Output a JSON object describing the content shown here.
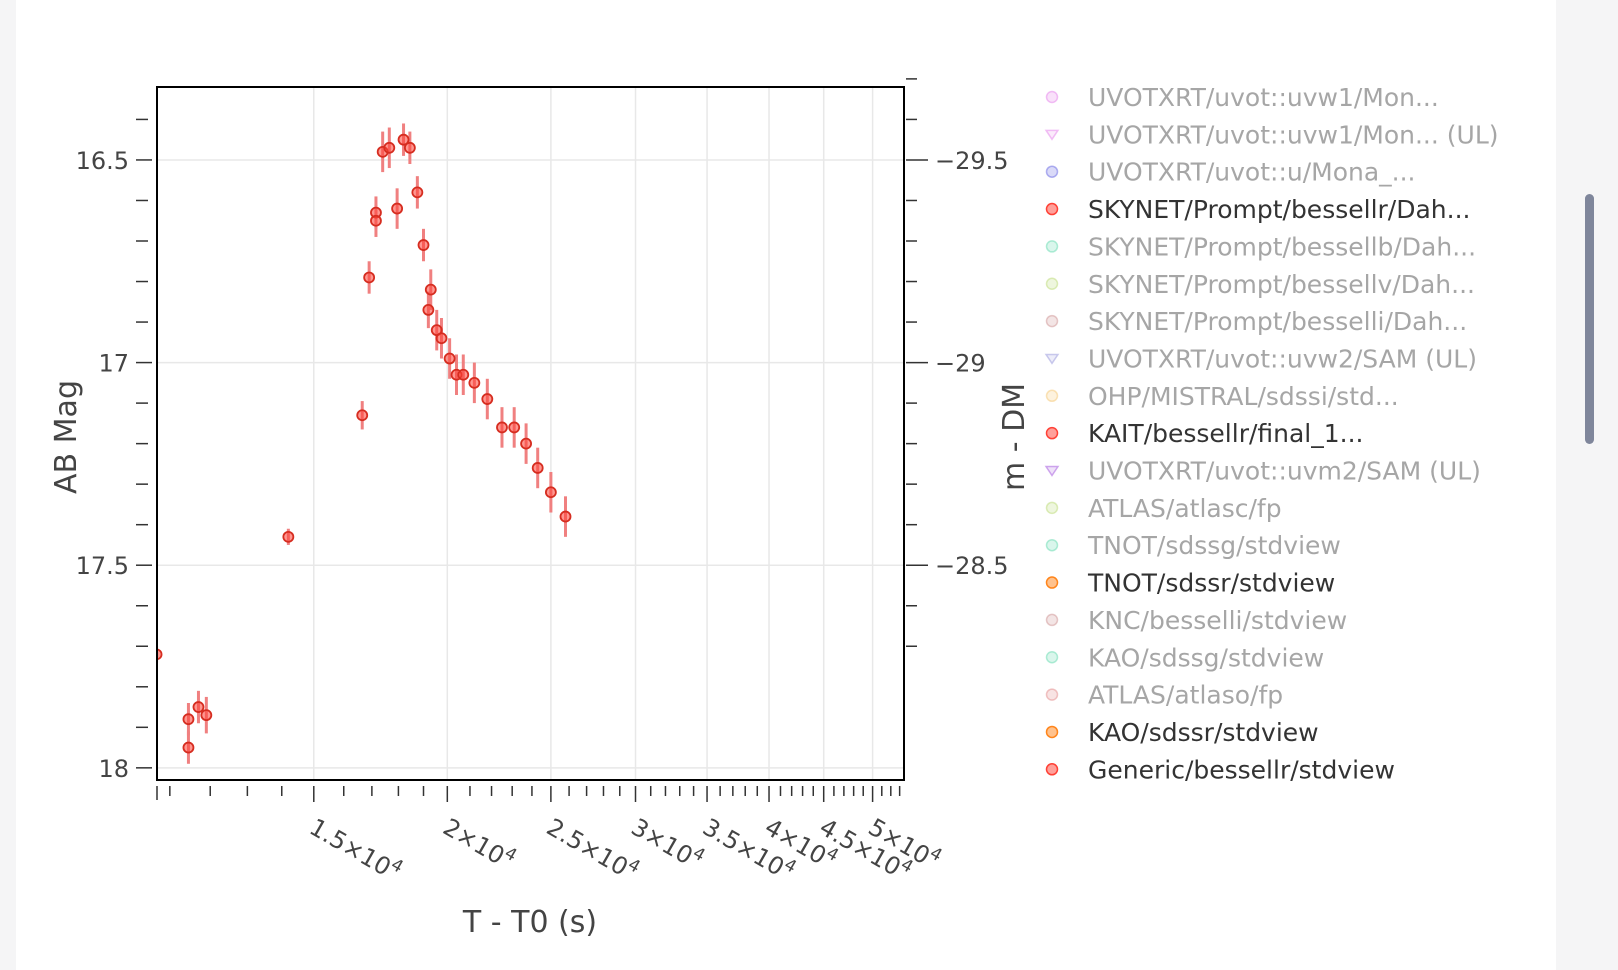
{
  "chart_data": {
    "type": "scatter",
    "title": "",
    "xlabel": "T - T0 (s)",
    "ylabel": "AB Mag",
    "y2label": "m - DM",
    "x_scale": "log",
    "xlim": [
      10700,
      53500
    ],
    "ylim": [
      18.03,
      16.32
    ],
    "y_reversed": true,
    "y2_offset": -46.0,
    "grid": true,
    "x_ticks": [
      {
        "value": 15000,
        "mant": "1.5×10",
        "exp": "4"
      },
      {
        "value": 20000,
        "mant": "2×10",
        "exp": "4"
      },
      {
        "value": 25000,
        "mant": "2.5×10",
        "exp": "4"
      },
      {
        "value": 30000,
        "mant": "3×10",
        "exp": "4"
      },
      {
        "value": 35000,
        "mant": "3.5×10",
        "exp": "4"
      },
      {
        "value": 40000,
        "mant": "4×10",
        "exp": "4"
      },
      {
        "value": 45000,
        "mant": "4.5×10",
        "exp": "4"
      },
      {
        "value": 50000,
        "mant": "5×10",
        "exp": "4"
      }
    ],
    "x_minor_ticks": [
      11000,
      12000,
      13000,
      14000,
      16000,
      17000,
      18000,
      19000,
      21000,
      22000,
      23000,
      24000,
      26000,
      27000,
      28000,
      29000,
      31000,
      32000,
      33000,
      34000,
      36000,
      37000,
      38000,
      39000,
      41000,
      42000,
      43000,
      44000,
      46000,
      47000,
      48000,
      49000,
      51000,
      52000,
      53000
    ],
    "y_ticks": [
      {
        "value": 16.5,
        "label": "16.5"
      },
      {
        "value": 17,
        "label": "17"
      },
      {
        "value": 17.5,
        "label": "17.5"
      },
      {
        "value": 18,
        "label": "18"
      }
    ],
    "y_minor_ticks": [
      16.4,
      16.6,
      16.7,
      16.8,
      16.9,
      17.1,
      17.2,
      17.3,
      17.4,
      17.6,
      17.7,
      17.8,
      17.9
    ],
    "y2_ticks": [
      {
        "value": -29.5,
        "label": "−29.5"
      },
      {
        "value": -29,
        "label": "−29"
      },
      {
        "value": -28.5,
        "label": "−28.5"
      }
    ],
    "y2_minor_ticks": [
      -29.7,
      -29.6,
      -29.4,
      -29.3,
      -29.2,
      -29.1,
      -28.9,
      -28.8,
      -28.7,
      -28.6,
      -28.4,
      -28.3
    ],
    "marker_color": "#ff4136",
    "errorbar_color": "#f08080",
    "series": [
      {
        "name": "SKYNET/Prompt/bessellr/Dah...",
        "points": [
          {
            "x": 10690,
            "y": 17.72,
            "err": 0.02
          },
          {
            "x": 11450,
            "y": 17.88,
            "err": 0.04
          },
          {
            "x": 11700,
            "y": 17.85,
            "err": 0.04
          },
          {
            "x": 11450,
            "y": 17.95,
            "err": 0.04
          },
          {
            "x": 11900,
            "y": 17.87,
            "err": 0.045
          },
          {
            "x": 14200,
            "y": 17.43,
            "err": 0.02
          },
          {
            "x": 16650,
            "y": 17.13,
            "err": 0.035
          },
          {
            "x": 16900,
            "y": 16.79,
            "err": 0.04
          },
          {
            "x": 17150,
            "y": 16.63,
            "err": 0.04
          },
          {
            "x": 17150,
            "y": 16.65,
            "err": 0.04
          },
          {
            "x": 17400,
            "y": 16.48,
            "err": 0.05
          },
          {
            "x": 17650,
            "y": 16.47,
            "err": 0.05
          },
          {
            "x": 17950,
            "y": 16.62,
            "err": 0.05
          },
          {
            "x": 18200,
            "y": 16.45,
            "err": 0.04
          },
          {
            "x": 18450,
            "y": 16.47,
            "err": 0.04
          },
          {
            "x": 18750,
            "y": 16.58,
            "err": 0.04
          },
          {
            "x": 19000,
            "y": 16.71,
            "err": 0.04
          },
          {
            "x": 19200,
            "y": 16.87,
            "err": 0.045
          },
          {
            "x": 19300,
            "y": 16.82,
            "err": 0.05
          },
          {
            "x": 19550,
            "y": 16.92,
            "err": 0.05
          },
          {
            "x": 19750,
            "y": 16.94,
            "err": 0.05
          },
          {
            "x": 20100,
            "y": 16.99,
            "err": 0.05
          },
          {
            "x": 20400,
            "y": 17.03,
            "err": 0.05
          },
          {
            "x": 20700,
            "y": 17.03,
            "err": 0.05
          },
          {
            "x": 21200,
            "y": 17.05,
            "err": 0.05
          },
          {
            "x": 21800,
            "y": 17.09,
            "err": 0.05
          },
          {
            "x": 22500,
            "y": 17.16,
            "err": 0.05
          },
          {
            "x": 23100,
            "y": 17.16,
            "err": 0.05
          },
          {
            "x": 23700,
            "y": 17.2,
            "err": 0.05
          },
          {
            "x": 24300,
            "y": 17.26,
            "err": 0.05
          },
          {
            "x": 25000,
            "y": 17.32,
            "err": 0.05
          },
          {
            "x": 25800,
            "y": 17.38,
            "err": 0.05
          }
        ]
      }
    ],
    "legend_position": "right",
    "legend": [
      {
        "label": "UVOTXRT/uvot::uvw1/Mon...",
        "color": "#e377e8",
        "symbol": "circle",
        "active": false
      },
      {
        "label": "UVOTXRT/uvot::uvw1/Mon... (UL)",
        "color": "#e377e8",
        "symbol": "triangle-down",
        "active": false
      },
      {
        "label": "UVOTXRT/uvot::u/Mona_...",
        "color": "#5b5be0",
        "symbol": "circle",
        "active": false
      },
      {
        "label": "SKYNET/Prompt/bessellr/Dah...",
        "color": "#ff4136",
        "symbol": "circle",
        "active": true
      },
      {
        "label": "SKYNET/Prompt/bessellb/Dah...",
        "color": "#59d6a8",
        "symbol": "circle",
        "active": false
      },
      {
        "label": "SKYNET/Prompt/bessellv/Dah...",
        "color": "#b5d66a",
        "symbol": "circle",
        "active": false
      },
      {
        "label": "SKYNET/Prompt/besselli/Dah...",
        "color": "#c98a8a",
        "symbol": "circle",
        "active": false
      },
      {
        "label": "UVOTXRT/uvot::uvw2/SAM (UL)",
        "color": "#8e8ed8",
        "symbol": "triangle-down",
        "active": false
      },
      {
        "label": "OHP/MISTRAL/sdssi/std...",
        "color": "#f5c46a",
        "symbol": "circle",
        "active": false
      },
      {
        "label": "KAIT/bessellr/final_1...",
        "color": "#ff4136",
        "symbol": "circle",
        "active": true
      },
      {
        "label": "UVOTXRT/uvot::uvm2/SAM (UL)",
        "color": "#9a45d9",
        "symbol": "triangle-down",
        "active": false
      },
      {
        "label": "ATLAS/atlasc/fp",
        "color": "#b5d66a",
        "symbol": "circle",
        "active": false
      },
      {
        "label": "TNOT/sdssg/stdview",
        "color": "#59d6a8",
        "symbol": "circle",
        "active": false
      },
      {
        "label": "TNOT/sdssr/stdview",
        "color": "#ff851b",
        "symbol": "circle",
        "active": true
      },
      {
        "label": "KNC/besselli/stdview",
        "color": "#c98a8a",
        "symbol": "circle",
        "active": false
      },
      {
        "label": "KAO/sdssg/stdview",
        "color": "#59d6a8",
        "symbol": "circle",
        "active": false
      },
      {
        "label": "ATLAS/atlaso/fp",
        "color": "#e08080",
        "symbol": "circle",
        "active": false
      },
      {
        "label": "KAO/sdssr/stdview",
        "color": "#ff851b",
        "symbol": "circle",
        "active": true
      },
      {
        "label": "Generic/bessellr/stdview",
        "color": "#ff4136",
        "symbol": "circle",
        "active": true
      }
    ],
    "legend_active_text_color": "#333333",
    "legend_inactive_text_color": "#a6a6a6"
  }
}
